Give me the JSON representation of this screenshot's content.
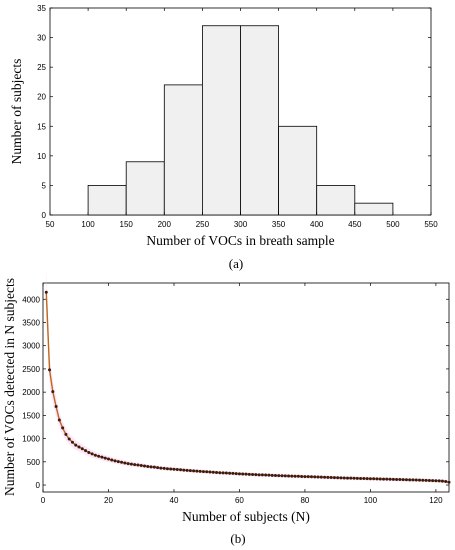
{
  "chart_data": [
    {
      "type": "bar",
      "caption": "(a)",
      "xlabel": "Number of VOCs in breath sample",
      "ylabel": "Number of subjects",
      "xlim": [
        50,
        550
      ],
      "ylim": [
        0,
        35
      ],
      "xticks": [
        50,
        100,
        150,
        200,
        250,
        300,
        350,
        400,
        450,
        500,
        550
      ],
      "yticks": [
        0,
        5,
        10,
        15,
        20,
        25,
        30,
        35
      ],
      "bins": [
        [
          100,
          150
        ],
        [
          150,
          200
        ],
        [
          200,
          250
        ],
        [
          250,
          300
        ],
        [
          300,
          350
        ],
        [
          350,
          400
        ],
        [
          400,
          450
        ],
        [
          450,
          500
        ]
      ],
      "values": [
        5,
        9,
        22,
        32,
        32,
        15,
        5,
        2
      ],
      "bar_color": "#f0f0f0",
      "edge_color": "#000000"
    },
    {
      "type": "line",
      "caption": "(b)",
      "xlabel": "Number of subjects (N)",
      "ylabel": "Number of VOCs detected in N subjects",
      "xlim": [
        0,
        124
      ],
      "ylim": [
        -150,
        4350
      ],
      "xticks": [
        0,
        20,
        40,
        60,
        80,
        100,
        120
      ],
      "yticks": [
        0,
        500,
        1000,
        1500,
        2000,
        2500,
        3000,
        3500,
        4000
      ],
      "line_color": "#c0651c",
      "marker_color": "#3a1b10",
      "band_color": "#f6c9f0",
      "series": [
        {
          "x": [
            1,
            2,
            3,
            4,
            5,
            6,
            7,
            8,
            9,
            10,
            11,
            12,
            13,
            14,
            15,
            16,
            17,
            18,
            19,
            20,
            21,
            22,
            23,
            24,
            25,
            26,
            27,
            28,
            29,
            30,
            31,
            32,
            33,
            34,
            35,
            36,
            37,
            38,
            39,
            40,
            41,
            42,
            43,
            44,
            45,
            46,
            47,
            48,
            49,
            50,
            51,
            52,
            53,
            54,
            55,
            56,
            57,
            58,
            59,
            60,
            61,
            62,
            63,
            64,
            65,
            66,
            67,
            68,
            69,
            70,
            71,
            72,
            73,
            74,
            75,
            76,
            77,
            78,
            79,
            80,
            81,
            82,
            83,
            84,
            85,
            86,
            87,
            88,
            89,
            90,
            91,
            92,
            93,
            94,
            95,
            96,
            97,
            98,
            99,
            100,
            101,
            102,
            103,
            104,
            105,
            106,
            107,
            108,
            109,
            110,
            111,
            112,
            113,
            114,
            115,
            116,
            117,
            118,
            119,
            120,
            121,
            122,
            123,
            124
          ],
          "values": [
            4150,
            2480,
            2010,
            1690,
            1400,
            1230,
            1090,
            990,
            920,
            860,
            820,
            780,
            740,
            700,
            670,
            640,
            620,
            600,
            580,
            560,
            540,
            520,
            505,
            490,
            475,
            460,
            450,
            440,
            430,
            420,
            410,
            400,
            390,
            385,
            375,
            365,
            360,
            350,
            345,
            340,
            335,
            330,
            320,
            315,
            310,
            305,
            300,
            295,
            290,
            285,
            280,
            275,
            270,
            265,
            262,
            258,
            255,
            250,
            245,
            240,
            238,
            235,
            230,
            228,
            225,
            220,
            218,
            215,
            212,
            208,
            205,
            202,
            200,
            198,
            195,
            192,
            190,
            188,
            185,
            182,
            180,
            178,
            175,
            172,
            170,
            168,
            165,
            162,
            160,
            158,
            155,
            152,
            150,
            148,
            146,
            144,
            142,
            140,
            138,
            136,
            134,
            132,
            130,
            128,
            126,
            124,
            122,
            120,
            118,
            116,
            114,
            112,
            110,
            108,
            105,
            102,
            100,
            97,
            95,
            92,
            90,
            85,
            75,
            60
          ]
        }
      ]
    }
  ]
}
